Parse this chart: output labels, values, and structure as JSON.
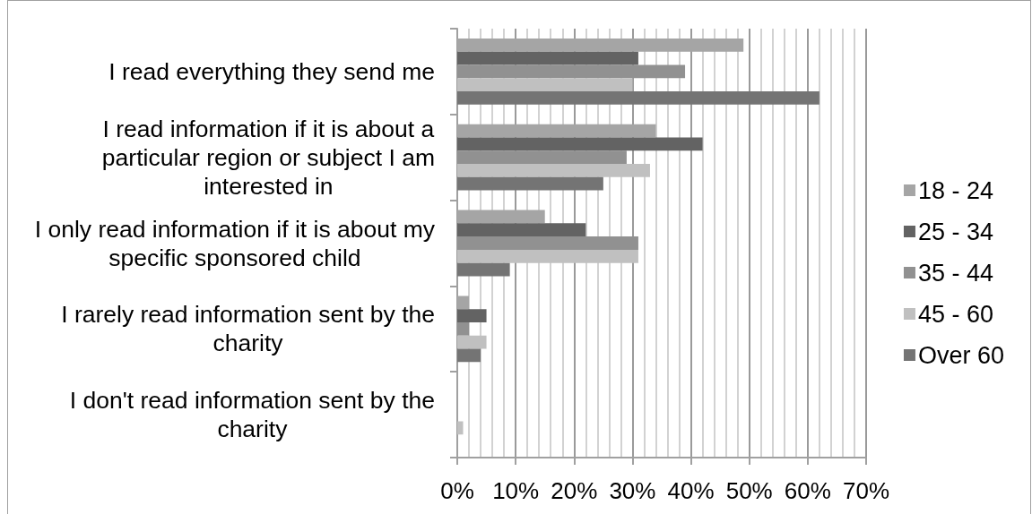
{
  "chart_data": {
    "type": "bar",
    "orientation": "horizontal",
    "categories": [
      "I read everything they send me",
      "I read information if it is about a particular region or subject I am interested in",
      "I only read information if it is about my specific sponsored child",
      "I rarely read information sent by the charity",
      "I don't read information sent by the charity"
    ],
    "series": [
      {
        "name": "18 - 24",
        "color": "#a5a5a5",
        "values": [
          49,
          34,
          15,
          2,
          0
        ]
      },
      {
        "name": "25 - 34",
        "color": "#636363",
        "values": [
          31,
          42,
          22,
          5,
          0
        ]
      },
      {
        "name": "35 - 44",
        "color": "#919191",
        "values": [
          39,
          29,
          31,
          2,
          0
        ]
      },
      {
        "name": "45 - 60",
        "color": "#c0c0c0",
        "values": [
          30,
          33,
          31,
          5,
          1
        ]
      },
      {
        "name": "Over 60",
        "color": "#747474",
        "values": [
          62,
          25,
          9,
          4,
          0
        ]
      }
    ],
    "xlim": [
      0,
      70
    ],
    "xticks": [
      {
        "value": 0,
        "label": "0%"
      },
      {
        "value": 10,
        "label": "10%"
      },
      {
        "value": 20,
        "label": "20%"
      },
      {
        "value": 30,
        "label": "30%"
      },
      {
        "value": 40,
        "label": "40%"
      },
      {
        "value": 50,
        "label": "50%"
      },
      {
        "value": 60,
        "label": "60%"
      },
      {
        "value": 70,
        "label": "70%"
      }
    ],
    "grid": "x",
    "legend": "right"
  }
}
